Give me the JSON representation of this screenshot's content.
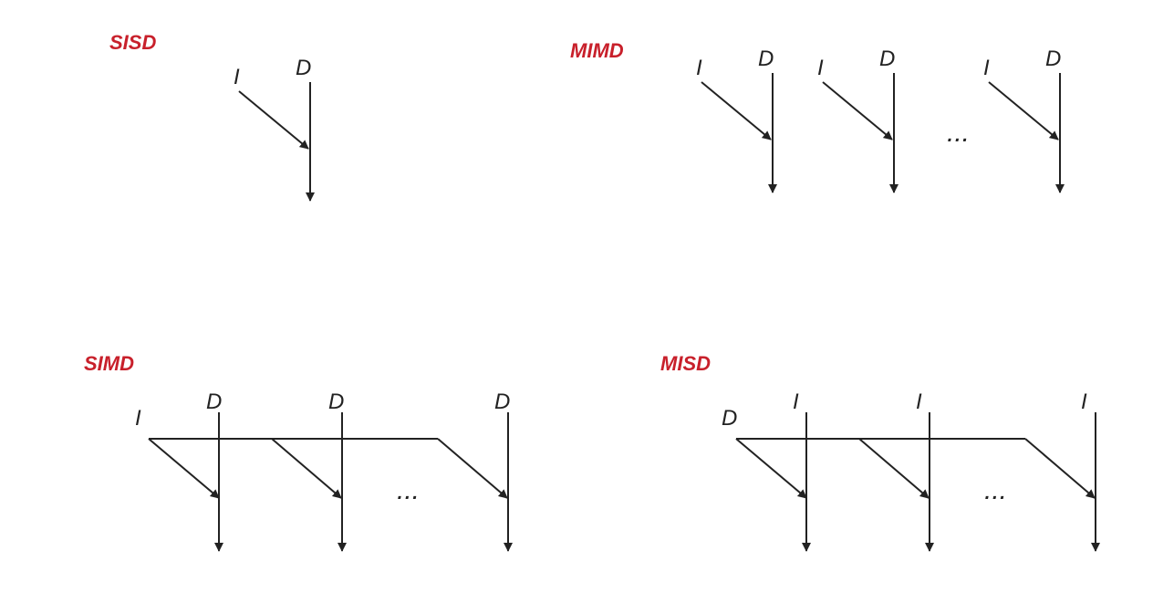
{
  "colors": {
    "title": "#c8202b",
    "line": "#222222",
    "background": "#ffffff"
  },
  "sisd": {
    "title": "SISD",
    "instruction": "I",
    "data": "D"
  },
  "mimd": {
    "title": "MIMD",
    "instruction": "I",
    "data": "D",
    "ellipsis": "..."
  },
  "simd": {
    "title": "SIMD",
    "instruction": "I",
    "data": "D",
    "ellipsis": "..."
  },
  "misd": {
    "title": "MISD",
    "instruction": "I",
    "data": "D",
    "ellipsis": "..."
  }
}
